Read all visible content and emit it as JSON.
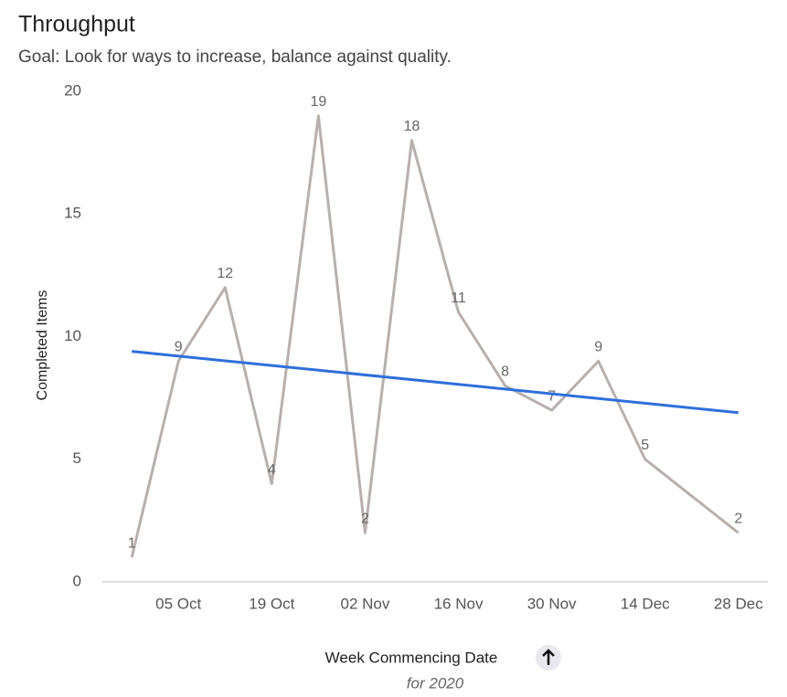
{
  "chart_data": {
    "type": "line",
    "title": "Throughput",
    "subtitle": "Goal: Look for ways to increase, balance against quality.",
    "y_label": "Completed Items",
    "x_label": "Week Commencing Date",
    "x_sublabel": "for 2020",
    "xlim": [
      -0.63,
      13.63
    ],
    "xticks": [
      {
        "value": 1,
        "label": "05 Oct"
      },
      {
        "value": 3,
        "label": "19 Oct"
      },
      {
        "value": 5,
        "label": "02 Nov"
      },
      {
        "value": 7,
        "label": "16 Nov"
      },
      {
        "value": 9,
        "label": "30 Nov"
      },
      {
        "value": 11,
        "label": "14 Dec"
      },
      {
        "value": 13,
        "label": "28 Dec"
      }
    ],
    "ylim": [
      0,
      20
    ],
    "yticks": [
      0,
      5,
      10,
      15,
      20
    ],
    "grid": false,
    "series": [
      {
        "name": "Throughput",
        "color": "#b8b0ad",
        "x": [
          0,
          1,
          2,
          3,
          4,
          5,
          6,
          7,
          8,
          9,
          10,
          11,
          13
        ],
        "values": [
          1,
          9,
          12,
          4,
          19,
          2,
          18,
          11,
          8,
          7,
          9,
          5,
          2
        ],
        "data_labels": true
      },
      {
        "name": "Trend",
        "color": "#2e6fdb",
        "x": [
          0,
          13
        ],
        "values": [
          9.4,
          6.9
        ],
        "data_labels": false
      }
    ]
  }
}
